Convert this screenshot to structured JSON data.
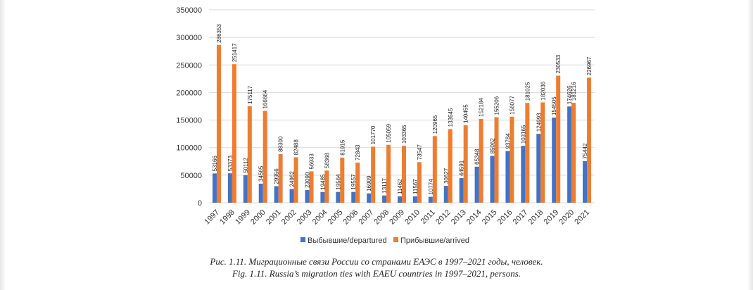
{
  "chart_data": {
    "type": "bar",
    "categories": [
      "1997",
      "1998",
      "1999",
      "2000",
      "2001",
      "2002",
      "2003",
      "2004",
      "2005",
      "2006",
      "2007",
      "2008",
      "2009",
      "2010",
      "2011",
      "2012",
      "2013",
      "2014",
      "2015",
      "2016",
      "2017",
      "2018",
      "2019",
      "2020",
      "2021"
    ],
    "series": [
      {
        "name": "Выбывшие/departured",
        "color": "#4472C4",
        "values": [
          53166,
          53373,
          50112,
          34565,
          29956,
          24962,
          23090,
          19485,
          19564,
          19557,
          16909,
          13117,
          11462,
          11567,
          10774,
          30627,
          44591,
          65348,
          85062,
          93784,
          103165,
          124993,
          154505,
          174626,
          75442
        ]
      },
      {
        "name": "Прибывшие/arrived",
        "color": "#ED7D31",
        "values": [
          286353,
          251417,
          175117,
          166664,
          88300,
          82488,
          56933,
          58368,
          81915,
          72843,
          101770,
          105059,
          103365,
          73547,
          120965,
          133645,
          140455,
          152184,
          155206,
          156077,
          181025,
          182036,
          230533,
          181216,
          226967
        ]
      }
    ],
    "yticks": [
      "0",
      "50000",
      "100000",
      "150000",
      "200000",
      "250000",
      "300000",
      "350000"
    ],
    "ylim": [
      0,
      350000
    ],
    "grid": true,
    "legend": "bottom-center",
    "xlabel": "",
    "ylabel": ""
  },
  "caption": {
    "ru": "Рис. 1.11. Миграционные связи России со странами ЕАЭС в 1997–2021 годы, человек.",
    "en": "Fig. 1.11. Russia’s migration ties with EAEU countries in 1997–2021, persons."
  }
}
